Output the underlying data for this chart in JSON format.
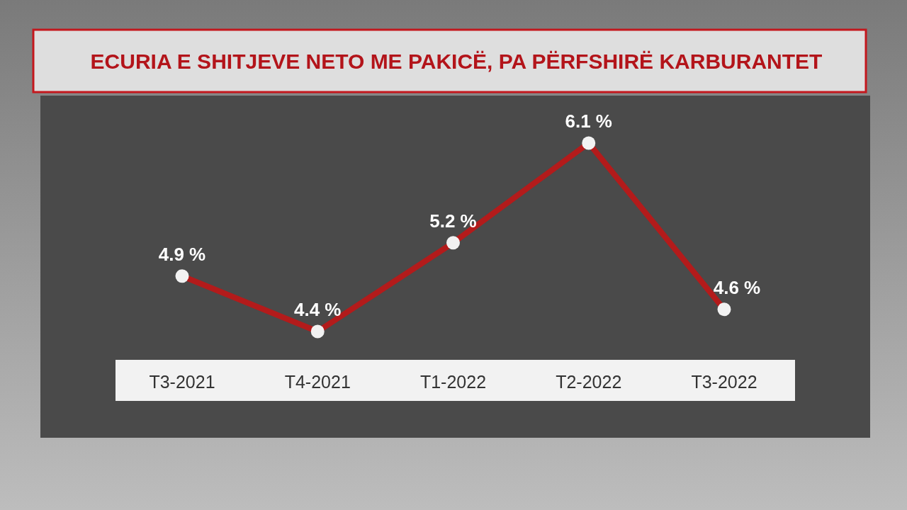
{
  "chart_data": {
    "type": "line",
    "title": "ECURIA E SHITJEVE NETO ME PAKICË, PA PËRFSHIRË KARBURANTET",
    "categories": [
      "T3-2021",
      "T4-2021",
      "T1-2022",
      "T2-2022",
      "T3-2022"
    ],
    "series": [
      {
        "color": "#b31b1b",
        "values": [
          4.9,
          4.4,
          5.2,
          6.1,
          4.6
        ],
        "value_labels": [
          "4.9 %",
          "4.4 %",
          "5.2 %",
          "6.1 %",
          "4.6 %"
        ]
      }
    ],
    "marker": "circle"
  }
}
